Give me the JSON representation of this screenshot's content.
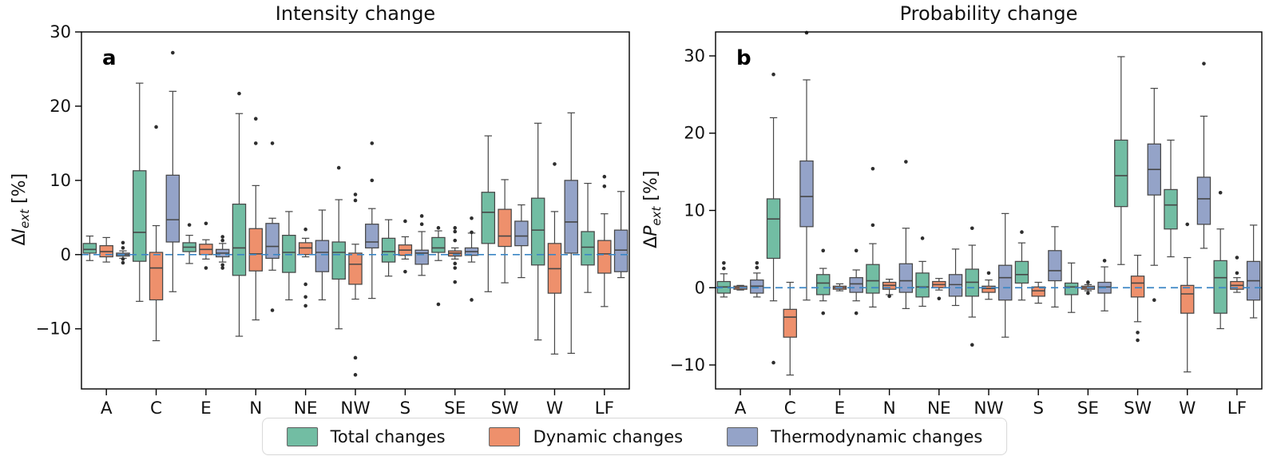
{
  "figure": {
    "background": "#ffffff"
  },
  "chart_data": [
    {
      "type": "boxplot",
      "panel_label": "a",
      "title": "Intensity change",
      "ylabel": {
        "prefix": "Δ",
        "variable": "I",
        "subscript": "ext",
        "suffix": " [%]"
      },
      "ylim": [
        -18.1,
        30.0
      ],
      "yticks": {
        "values": [
          30,
          20,
          10,
          0,
          -10
        ],
        "labels": [
          "30",
          "20",
          "10",
          "0",
          "−10"
        ]
      },
      "zero_line": {
        "value": 0,
        "color": "#3c86c5",
        "style": "dashed"
      },
      "categories": [
        "A",
        "C",
        "E",
        "N",
        "NE",
        "NW",
        "S",
        "SE",
        "SW",
        "W",
        "LF"
      ],
      "box_format": [
        "whisker_low",
        "q1",
        "median",
        "q3",
        "whisker_high"
      ],
      "series": [
        {
          "name": "Total changes",
          "color": "#72bda3",
          "boxes": [
            [
              -0.8,
              0.2,
              0.7,
              1.5,
              2.5
            ],
            [
              -6.3,
              -0.9,
              3.0,
              11.3,
              23.1
            ],
            [
              -1.2,
              0.4,
              1.0,
              1.6,
              2.6
            ],
            [
              -11.0,
              -2.8,
              0.9,
              6.8,
              19.0
            ],
            [
              -6.1,
              -2.4,
              0.3,
              2.6,
              5.8
            ],
            [
              -10.0,
              -3.3,
              0.3,
              1.7,
              7.4
            ],
            [
              -2.9,
              -1.0,
              0.4,
              2.2,
              4.7
            ],
            [
              -0.8,
              0.3,
              0.9,
              2.3,
              3.2
            ],
            [
              -5.0,
              1.5,
              5.7,
              8.4,
              16.0
            ],
            [
              -11.5,
              -1.4,
              3.3,
              7.6,
              17.7
            ],
            [
              -5.1,
              -1.4,
              1.0,
              3.1,
              9.6
            ]
          ],
          "fliers": [
            [],
            [],
            [
              4.0
            ],
            [
              21.7
            ],
            [],
            [
              11.7
            ],
            [],
            [
              3.6,
              -6.7
            ],
            [],
            [],
            []
          ]
        },
        {
          "name": "Dynamic changes",
          "color": "#ee906c",
          "boxes": [
            [
              -1.0,
              -0.3,
              0.4,
              1.2,
              2.3
            ],
            [
              -11.6,
              -6.1,
              -1.8,
              0.3,
              3.9
            ],
            [
              -0.6,
              0.0,
              0.7,
              1.4,
              2.0
            ],
            [
              -8.8,
              -2.2,
              0.1,
              3.5,
              9.3
            ],
            [
              -0.3,
              0.0,
              0.9,
              1.6,
              2.2
            ],
            [
              -6.0,
              -4.0,
              -1.3,
              0.2,
              1.4
            ],
            [
              -0.6,
              -0.1,
              0.6,
              1.3,
              2.4
            ],
            [
              -0.6,
              -0.2,
              0.2,
              0.5,
              0.9
            ],
            [
              -3.8,
              1.1,
              2.5,
              6.1,
              10.1
            ],
            [
              -13.4,
              -5.2,
              -1.9,
              1.5,
              5.8
            ],
            [
              -7.0,
              -2.5,
              0.1,
              1.9,
              5.5
            ]
          ],
          "fliers": [
            [],
            [
              17.2
            ],
            [
              4.2,
              -1.8
            ],
            [
              18.3,
              15.0
            ],
            [
              3.4,
              -4.0,
              -5.7,
              -6.9
            ],
            [
              8.1,
              7.3,
              -13.9,
              -16.2
            ],
            [
              4.5,
              -2.3
            ],
            [
              3.6,
              3.1,
              1.9,
              -1.2,
              -1.8,
              -3.7
            ],
            [],
            [
              12.2
            ],
            [
              10.5,
              9.2
            ]
          ]
        },
        {
          "name": "Thermodynamic changes",
          "color": "#94a3c8",
          "boxes": [
            [
              -0.5,
              -0.2,
              0.0,
              0.2,
              0.5
            ],
            [
              -5.0,
              1.7,
              4.7,
              10.7,
              22.0
            ],
            [
              -1.0,
              -0.3,
              0.2,
              0.7,
              1.5
            ],
            [
              -2.1,
              -0.5,
              1.1,
              4.2,
              4.9
            ],
            [
              -6.1,
              -2.3,
              0.3,
              1.9,
              6.0
            ],
            [
              -5.9,
              0.9,
              1.7,
              4.1,
              6.2
            ],
            [
              -2.8,
              -1.3,
              0.2,
              0.6,
              3.1
            ],
            [
              -1.0,
              -0.1,
              0.4,
              0.9,
              2.9
            ],
            [
              -3.1,
              1.2,
              2.5,
              4.5,
              6.7
            ],
            [
              -13.3,
              0.2,
              4.4,
              10.0,
              19.1
            ],
            [
              -3.1,
              -2.3,
              0.6,
              3.3,
              8.5
            ]
          ],
          "fliers": [
            [
              1.6,
              0.9,
              -0.6,
              -1.1
            ],
            [
              27.2
            ],
            [
              2.4,
              1.9,
              -1.4,
              -1.8
            ],
            [
              15.0,
              -7.5
            ],
            [],
            [
              15.0,
              10.0
            ],
            [
              5.2,
              4.1
            ],
            [
              4.9,
              3.0,
              -6.1
            ],
            [],
            [],
            []
          ]
        }
      ]
    },
    {
      "type": "boxplot",
      "panel_label": "b",
      "title": "Probability change",
      "ylabel": {
        "prefix": "Δ",
        "variable": "P",
        "subscript": "ext",
        "suffix": " [%]"
      },
      "ylim": [
        -13.1,
        33.1
      ],
      "yticks": {
        "values": [
          30,
          20,
          10,
          0,
          -10
        ],
        "labels": [
          "30",
          "20",
          "10",
          "0",
          "−10"
        ]
      },
      "zero_line": {
        "value": 0,
        "color": "#3c86c5",
        "style": "dashed"
      },
      "categories": [
        "A",
        "C",
        "E",
        "N",
        "NE",
        "NW",
        "S",
        "SE",
        "SW",
        "W",
        "LF"
      ],
      "box_format": [
        "whisker_low",
        "q1",
        "median",
        "q3",
        "whisker_high"
      ],
      "series": [
        {
          "name": "Total changes",
          "color": "#72bda3",
          "boxes": [
            [
              -1.2,
              -0.7,
              0.1,
              0.8,
              1.8
            ],
            [
              -1.7,
              3.8,
              8.9,
              11.5,
              22.0
            ],
            [
              -1.7,
              -0.9,
              0.6,
              1.7,
              2.5
            ],
            [
              -2.5,
              -0.7,
              0.9,
              3.0,
              5.7
            ],
            [
              -2.4,
              -1.2,
              0.1,
              1.9,
              3.4
            ],
            [
              -3.8,
              -1.1,
              0.7,
              2.4,
              5.5
            ],
            [
              -1.6,
              0.6,
              1.7,
              3.4,
              5.8
            ],
            [
              -3.2,
              -0.9,
              0.1,
              0.6,
              3.2
            ],
            [
              3.0,
              10.5,
              14.5,
              19.1,
              29.9
            ],
            [
              4.0,
              7.6,
              10.7,
              12.7,
              19.1
            ],
            [
              -5.3,
              -3.3,
              1.3,
              3.5,
              7.6
            ]
          ],
          "fliers": [
            [
              3.2,
              2.5
            ],
            [
              27.6,
              -9.7
            ],
            [
              4.8,
              -3.3
            ],
            [
              15.4,
              8.1
            ],
            [
              6.4
            ],
            [
              7.7,
              -7.4
            ],
            [
              7.2
            ],
            [],
            [],
            [],
            [
              12.3
            ]
          ]
        },
        {
          "name": "Dynamic changes",
          "color": "#ee906c",
          "boxes": [
            [
              -0.3,
              -0.2,
              0.0,
              0.2,
              0.3
            ],
            [
              -11.3,
              -6.4,
              -3.8,
              -2.8,
              0.7
            ],
            [
              -0.4,
              -0.2,
              0.0,
              0.2,
              0.5
            ],
            [
              -0.9,
              -0.2,
              0.3,
              0.7,
              1.1
            ],
            [
              -0.3,
              0.0,
              0.4,
              0.8,
              1.2
            ],
            [
              -1.5,
              -0.6,
              -0.1,
              0.2,
              1.0
            ],
            [
              -2.0,
              -1.1,
              -0.4,
              0.1,
              0.7
            ],
            [
              -0.4,
              -0.2,
              0.0,
              0.2,
              0.4
            ],
            [
              -4.4,
              -1.2,
              0.6,
              1.5,
              4.2
            ],
            [
              -10.9,
              -3.3,
              -0.8,
              0.3,
              3.9
            ],
            [
              -0.6,
              -0.2,
              0.3,
              0.8,
              1.3
            ]
          ],
          "fliers": [
            [],
            [],
            [],
            [
              -1.1
            ],
            [
              -1.4
            ],
            [
              1.9
            ],
            [],
            [
              0.7,
              -0.7
            ],
            [
              -5.8,
              -6.8
            ],
            [
              8.2
            ],
            [
              3.9,
              1.9
            ]
          ]
        },
        {
          "name": "Thermodynamic changes",
          "color": "#94a3c8",
          "boxes": [
            [
              -1.2,
              -0.7,
              0.2,
              1.0,
              1.9
            ],
            [
              -1.6,
              7.9,
              11.8,
              16.4,
              26.9
            ],
            [
              -1.7,
              -0.6,
              0.5,
              1.3,
              2.3
            ],
            [
              -2.7,
              -0.6,
              0.9,
              3.1,
              7.7
            ],
            [
              -2.3,
              -1.1,
              0.4,
              1.7,
              5.0
            ],
            [
              -6.4,
              -1.6,
              1.3,
              2.9,
              9.6
            ],
            [
              -2.5,
              0.9,
              2.2,
              4.8,
              7.9
            ],
            [
              -3.0,
              -0.7,
              0.1,
              0.7,
              2.7
            ],
            [
              2.9,
              12.0,
              15.3,
              18.6,
              25.8
            ],
            [
              5.1,
              8.2,
              11.5,
              14.3,
              22.2
            ],
            [
              -3.9,
              -1.6,
              0.9,
              3.4,
              8.1
            ]
          ],
          "fliers": [
            [
              3.2,
              2.6
            ],
            [
              33.0
            ],
            [
              4.8,
              -3.3
            ],
            [
              16.3
            ],
            [],
            [],
            [],
            [
              3.5
            ],
            [
              -1.6
            ],
            [
              29.0
            ],
            []
          ]
        }
      ]
    }
  ],
  "legend": {
    "entries": [
      {
        "label": "Total changes",
        "color": "#72bda3"
      },
      {
        "label": "Dynamic changes",
        "color": "#ee906c"
      },
      {
        "label": "Thermodynamic changes",
        "color": "#94a3c8"
      }
    ]
  },
  "style": {
    "box_edge": "#474747",
    "flier_color": "#2e2e2e",
    "axis_color": "#000000"
  }
}
